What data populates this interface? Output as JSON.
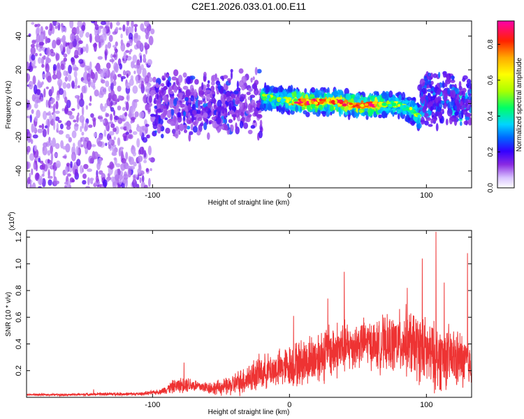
{
  "chart_data": [
    {
      "type": "heatmap",
      "title": "C2E1.2026.033.01.00.E11",
      "xlabel": "Height of straight line (km)",
      "ylabel": "Frequency (Hz)",
      "xlim": [
        -192,
        133
      ],
      "ylim": [
        -50,
        49
      ],
      "x_ticks": [
        -100,
        0,
        100
      ],
      "y_ticks": [
        -40,
        -20,
        0,
        20,
        40
      ],
      "colorbar": {
        "label": "Normalized spectral amplitude",
        "range": [
          0.0,
          0.93
        ],
        "ticks": [
          0.0,
          0.2,
          0.4,
          0.6,
          0.8
        ],
        "colormap": [
          "#d9c4ff",
          "#8a2be2",
          "#3300ff",
          "#0088ff",
          "#00e5ff",
          "#00ff66",
          "#aaff00",
          "#ffff00",
          "#ffaa00",
          "#ff2200",
          "#ff00aa"
        ]
      },
      "noise_regions": [
        {
          "x": [
            -192,
            -100
          ],
          "freq": [
            -50,
            49
          ],
          "amplitude": [
            0.02,
            0.12
          ]
        },
        {
          "x": [
            -100,
            -20
          ],
          "freq": [
            -22,
            20
          ],
          "amplitude": [
            0.05,
            0.2
          ]
        },
        {
          "x": [
            -20,
            95
          ],
          "freq": [
            -8,
            8
          ],
          "amplitude": [
            0.15,
            0.9
          ]
        },
        {
          "x": [
            95,
            133
          ],
          "freq": [
            -15,
            20
          ],
          "amplitude": [
            0.1,
            0.3
          ]
        }
      ],
      "ridge": {
        "x": [
          -20,
          -10,
          0,
          10,
          20,
          30,
          40,
          50,
          60,
          70,
          80,
          90,
          95,
          100,
          110,
          120,
          133
        ],
        "freq": [
          4,
          3,
          2,
          1,
          1,
          1,
          0,
          -1,
          -1,
          0,
          -1,
          -4,
          -8,
          -1,
          1,
          2,
          3
        ]
      }
    },
    {
      "type": "line",
      "xlabel": "Height of straight line (km)",
      "ylabel": "SNR (10 * v/v)",
      "y_multiplier": "(x10",
      "y_multiplier_exponent": "4",
      "y_multiplier_close": ")",
      "xlim": [
        -192,
        133
      ],
      "ylim": [
        0.0,
        1.25
      ],
      "x_ticks": [
        -100,
        0,
        100
      ],
      "y_ticks": [
        0.2,
        0.4,
        0.6,
        0.8,
        1.0,
        1.2
      ],
      "series": [
        {
          "name": "SNR",
          "color": "#ee3333",
          "x": [
            -192,
            -160,
            -130,
            -110,
            -95,
            -85,
            -75,
            -65,
            -55,
            -45,
            -35,
            -25,
            -15,
            -5,
            5,
            15,
            25,
            35,
            45,
            55,
            65,
            75,
            85,
            95,
            105,
            115,
            125,
            133
          ],
          "baseline": [
            0.02,
            0.02,
            0.025,
            0.025,
            0.04,
            0.08,
            0.1,
            0.08,
            0.07,
            0.08,
            0.12,
            0.17,
            0.2,
            0.22,
            0.25,
            0.28,
            0.33,
            0.36,
            0.38,
            0.42,
            0.38,
            0.4,
            0.42,
            0.37,
            0.3,
            0.3,
            0.28,
            0.25
          ],
          "spread": [
            0.01,
            0.01,
            0.015,
            0.015,
            0.02,
            0.06,
            0.07,
            0.05,
            0.06,
            0.08,
            0.12,
            0.15,
            0.15,
            0.17,
            0.2,
            0.22,
            0.25,
            0.25,
            0.22,
            0.2,
            0.22,
            0.25,
            0.3,
            0.3,
            0.3,
            0.28,
            0.25,
            0.2
          ],
          "peaks": [
            {
              "x": -143,
              "y": 0.06
            },
            {
              "x": -77,
              "y": 0.26
            },
            {
              "x": 3,
              "y": 0.61
            },
            {
              "x": 28,
              "y": 0.74
            },
            {
              "x": 40,
              "y": 0.94
            },
            {
              "x": 68,
              "y": 0.62
            },
            {
              "x": 86,
              "y": 0.82
            },
            {
              "x": 97,
              "y": 1.04
            },
            {
              "x": 107,
              "y": 1.24
            },
            {
              "x": 113,
              "y": 0.86
            },
            {
              "x": 130,
              "y": 1.08
            }
          ]
        }
      ]
    }
  ]
}
